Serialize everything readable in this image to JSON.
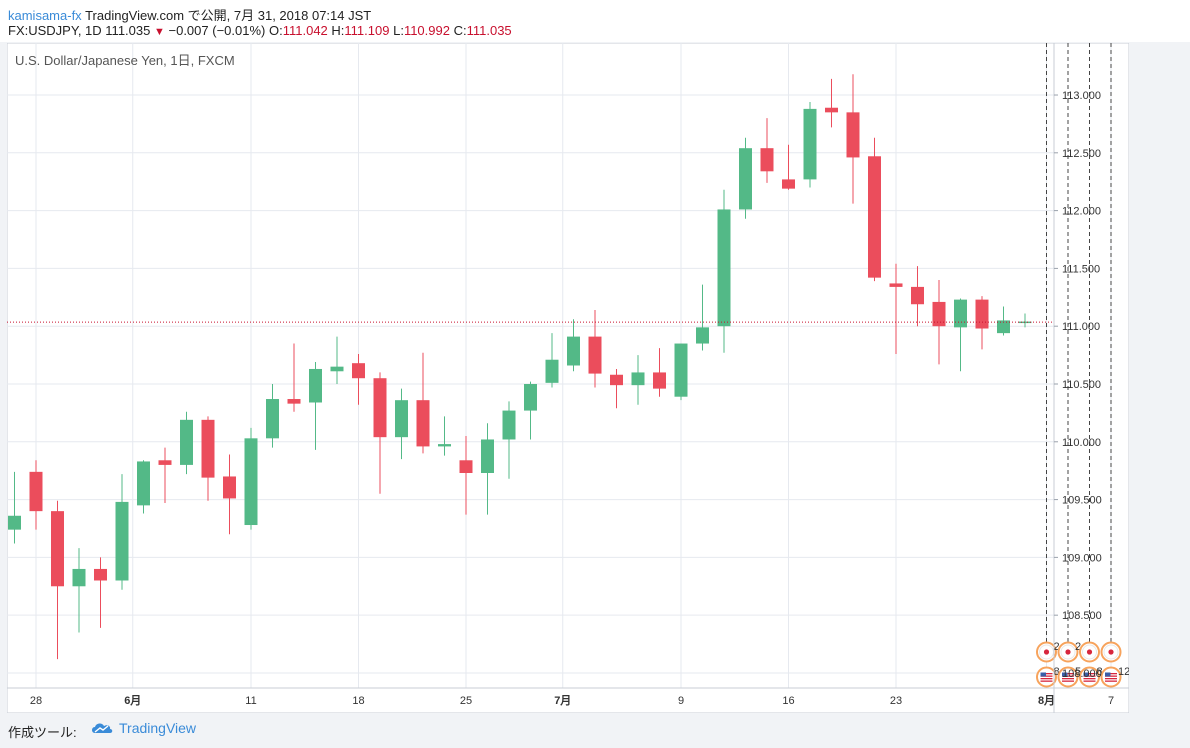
{
  "header": {
    "author": "kamisama-fx",
    "publish_text": "TradingView.com で公開, 7月 31, 2018 07:14 JST",
    "symbol_line": "FX:USDJPY, 1D 111.035",
    "change": "−0.007 (−0.01%)",
    "open_label": "O:",
    "open": "111.042",
    "high_label": "H:",
    "high": "111.109",
    "low_label": "L:",
    "low": "110.992",
    "close_label": "C:",
    "close": "111.035"
  },
  "chart_data": {
    "type": "candlestick",
    "title": "U.S. Dollar/Japanese Yen, 1日, FXCM",
    "ylim": [
      107.87,
      113.45
    ],
    "y_ticks": [
      108.0,
      108.5,
      109.0,
      109.5,
      110.0,
      110.5,
      111.0,
      111.5,
      112.0,
      112.5,
      113.0
    ],
    "y_tick_labels": [
      "108.000",
      "108.500",
      "109.000",
      "109.500",
      "110.000",
      "110.500",
      "111.000",
      "111.500",
      "112.000",
      "112.500",
      "113.000"
    ],
    "x_ticks": [
      {
        "index": 1,
        "label": "28"
      },
      {
        "index": 5.5,
        "label": "6月"
      },
      {
        "index": 11,
        "label": "11"
      },
      {
        "index": 16,
        "label": "18"
      },
      {
        "index": 21,
        "label": "25"
      },
      {
        "index": 25.5,
        "label": "7月"
      },
      {
        "index": 31,
        "label": "9"
      },
      {
        "index": 36,
        "label": "16"
      },
      {
        "index": 41,
        "label": "23"
      },
      {
        "index": 48,
        "label": "8月"
      },
      {
        "index": 51,
        "label": "7"
      }
    ],
    "candles": [
      {
        "o": 109.24,
        "h": 109.74,
        "l": 109.12,
        "c": 109.36
      },
      {
        "o": 109.74,
        "h": 109.84,
        "l": 109.24,
        "c": 109.4
      },
      {
        "o": 109.4,
        "h": 109.49,
        "l": 108.12,
        "c": 108.75
      },
      {
        "o": 108.75,
        "h": 109.08,
        "l": 108.35,
        "c": 108.9
      },
      {
        "o": 108.9,
        "h": 109.0,
        "l": 108.39,
        "c": 108.8
      },
      {
        "o": 108.8,
        "h": 109.72,
        "l": 108.72,
        "c": 109.48
      },
      {
        "o": 109.45,
        "h": 109.84,
        "l": 109.38,
        "c": 109.83
      },
      {
        "o": 109.84,
        "h": 109.95,
        "l": 109.47,
        "c": 109.8
      },
      {
        "o": 109.8,
        "h": 110.26,
        "l": 109.72,
        "c": 110.19
      },
      {
        "o": 110.19,
        "h": 110.22,
        "l": 109.49,
        "c": 109.69
      },
      {
        "o": 109.7,
        "h": 109.89,
        "l": 109.2,
        "c": 109.51
      },
      {
        "o": 109.28,
        "h": 110.12,
        "l": 109.24,
        "c": 110.03
      },
      {
        "o": 110.03,
        "h": 110.5,
        "l": 109.95,
        "c": 110.37
      },
      {
        "o": 110.37,
        "h": 110.85,
        "l": 110.26,
        "c": 110.33
      },
      {
        "o": 110.34,
        "h": 110.69,
        "l": 109.93,
        "c": 110.63
      },
      {
        "o": 110.61,
        "h": 110.91,
        "l": 110.5,
        "c": 110.65
      },
      {
        "o": 110.68,
        "h": 110.76,
        "l": 110.32,
        "c": 110.55
      },
      {
        "o": 110.55,
        "h": 110.6,
        "l": 109.55,
        "c": 110.04
      },
      {
        "o": 110.04,
        "h": 110.46,
        "l": 109.85,
        "c": 110.36
      },
      {
        "o": 110.36,
        "h": 110.77,
        "l": 109.9,
        "c": 109.96
      },
      {
        "o": 109.96,
        "h": 110.22,
        "l": 109.88,
        "c": 109.98
      },
      {
        "o": 109.84,
        "h": 110.05,
        "l": 109.37,
        "c": 109.73
      },
      {
        "o": 109.73,
        "h": 110.16,
        "l": 109.37,
        "c": 110.02
      },
      {
        "o": 110.02,
        "h": 110.35,
        "l": 109.68,
        "c": 110.27
      },
      {
        "o": 110.27,
        "h": 110.52,
        "l": 110.02,
        "c": 110.5
      },
      {
        "o": 110.51,
        "h": 110.94,
        "l": 110.47,
        "c": 110.71
      },
      {
        "o": 110.66,
        "h": 111.06,
        "l": 110.61,
        "c": 110.91
      },
      {
        "o": 110.91,
        "h": 111.14,
        "l": 110.47,
        "c": 110.59
      },
      {
        "o": 110.58,
        "h": 110.63,
        "l": 110.29,
        "c": 110.49
      },
      {
        "o": 110.49,
        "h": 110.75,
        "l": 110.32,
        "c": 110.6
      },
      {
        "o": 110.6,
        "h": 110.81,
        "l": 110.39,
        "c": 110.46
      },
      {
        "o": 110.39,
        "h": 110.85,
        "l": 110.36,
        "c": 110.85
      },
      {
        "o": 110.85,
        "h": 111.36,
        "l": 110.79,
        "c": 110.99
      },
      {
        "o": 111.0,
        "h": 112.18,
        "l": 110.77,
        "c": 112.01
      },
      {
        "o": 112.01,
        "h": 112.63,
        "l": 111.93,
        "c": 112.54
      },
      {
        "o": 112.54,
        "h": 112.8,
        "l": 112.24,
        "c": 112.34
      },
      {
        "o": 112.27,
        "h": 112.57,
        "l": 112.18,
        "c": 112.19
      },
      {
        "o": 112.27,
        "h": 112.94,
        "l": 112.2,
        "c": 112.88
      },
      {
        "o": 112.89,
        "h": 113.14,
        "l": 112.72,
        "c": 112.85
      },
      {
        "o": 112.85,
        "h": 113.18,
        "l": 112.06,
        "c": 112.46
      },
      {
        "o": 112.47,
        "h": 112.63,
        "l": 111.39,
        "c": 111.42
      },
      {
        "o": 111.37,
        "h": 111.54,
        "l": 110.76,
        "c": 111.34
      },
      {
        "o": 111.34,
        "h": 111.52,
        "l": 111.0,
        "c": 111.19
      },
      {
        "o": 111.21,
        "h": 111.4,
        "l": 110.67,
        "c": 111.0
      },
      {
        "o": 110.99,
        "h": 111.24,
        "l": 110.61,
        "c": 111.23
      },
      {
        "o": 111.23,
        "h": 111.26,
        "l": 110.8,
        "c": 110.98
      },
      {
        "o": 110.94,
        "h": 111.17,
        "l": 110.92,
        "c": 111.05
      },
      {
        "o": 111.04,
        "h": 111.11,
        "l": 110.99,
        "c": 111.04
      }
    ],
    "current_price": 111.035,
    "events": [
      {
        "index": 48,
        "top_icon": "jp-flag-icon",
        "top_count": "2",
        "bottom_icon": "us-flag-icon",
        "bottom_count": "8"
      },
      {
        "index": 49,
        "top_icon": "jp-flag-icon",
        "top_count": "2",
        "bottom_icon": "us-flag-icon",
        "bottom_count": "5"
      },
      {
        "index": 50,
        "top_icon": "jp-flag-icon",
        "top_count": "",
        "bottom_icon": "us-flag-icon",
        "bottom_count": "8"
      },
      {
        "index": 51,
        "top_icon": "jp-flag-icon",
        "top_count": "",
        "bottom_icon": "us-flag-icon",
        "bottom_count": "12"
      }
    ],
    "colors": {
      "up": "#53b987",
      "down": "#eb4d5c",
      "price_line": "#c8102e",
      "grid": "#e6e9ef"
    }
  },
  "footer": {
    "label": "作成ツール:",
    "brand": "TradingView"
  }
}
